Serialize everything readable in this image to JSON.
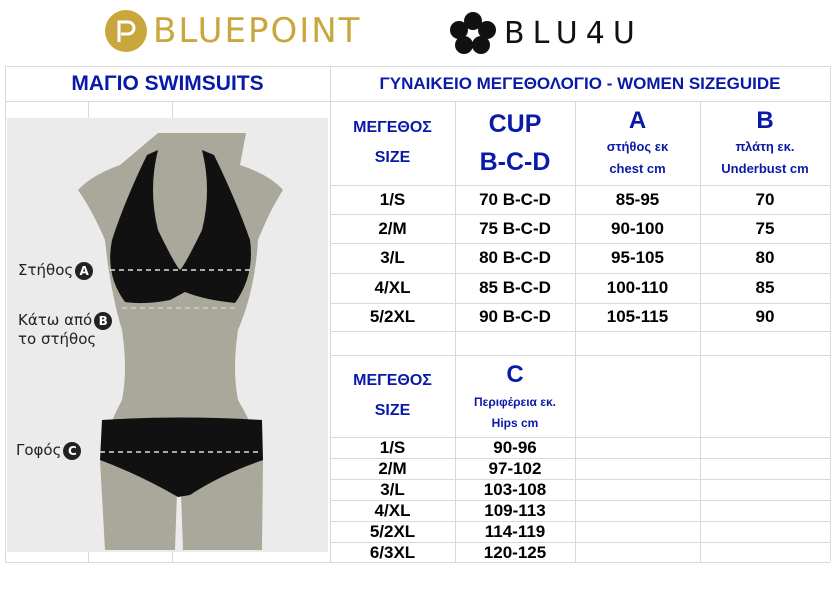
{
  "logos": {
    "bluepoint": "BLUEPOINT",
    "blu4u": "BLU4U"
  },
  "left_title": "ΜΑΓΙΟ SWIMSUITS",
  "right_title": "ΓΥΝΑΙΚΕΙΟ ΜΕΓΕΘΟΛΟΓΙΟ - WOMEN SIZEGUIDE",
  "figure_labels": {
    "a": "Στήθος",
    "a_mark": "A",
    "b1": "Κάτω από",
    "b2": "το στήθος",
    "b_mark": "B",
    "c": "Γοφός",
    "c_mark": "C"
  },
  "top_table": {
    "headers": {
      "size": [
        "ΜΕΓΕΘΟΣ",
        "SIZE"
      ],
      "cup": [
        "CUP",
        "B-C-D"
      ],
      "a": [
        "A",
        "στήθος εκ",
        "chest cm"
      ],
      "b": [
        "B",
        "πλάτη εκ.",
        "Underbust cm"
      ]
    },
    "rows": [
      [
        "1/S",
        "70 B-C-D",
        "85-95",
        "70"
      ],
      [
        "2/M",
        "75 B-C-D",
        "90-100",
        "75"
      ],
      [
        "3/L",
        "80 B-C-D",
        "95-105",
        "80"
      ],
      [
        "4/XL",
        "85 B-C-D",
        "100-110",
        "85"
      ],
      [
        "5/2XL",
        "90 B-C-D",
        "105-115",
        "90"
      ]
    ]
  },
  "bottom_table": {
    "headers": {
      "size": [
        "ΜΕΓΕΘΟΣ",
        "SIZE"
      ],
      "c": [
        "C",
        "Περιφέρεια εκ.",
        "Hips cm"
      ]
    },
    "rows": [
      [
        "1/S",
        "90-96"
      ],
      [
        "2/M",
        "97-102"
      ],
      [
        "3/L",
        "103-108"
      ],
      [
        "4/XL",
        "109-113"
      ],
      [
        "5/2XL",
        "114-119"
      ],
      [
        "6/3XL",
        "120-125"
      ]
    ]
  },
  "colors": {
    "title_blue": "#0a1aa8",
    "gold": "#c9a73d",
    "mannequin": "#aaa89a",
    "panel": "#ebebeb"
  }
}
